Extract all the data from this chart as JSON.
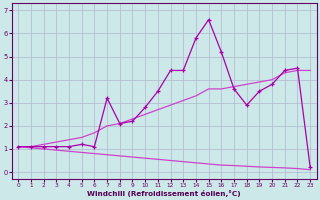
{
  "x": [
    0,
    1,
    2,
    3,
    4,
    5,
    6,
    7,
    8,
    9,
    10,
    11,
    12,
    13,
    14,
    15,
    16,
    17,
    18,
    19,
    20,
    21,
    22,
    23
  ],
  "y_main": [
    1.1,
    1.1,
    1.1,
    1.1,
    1.1,
    1.2,
    1.1,
    3.2,
    2.1,
    2.2,
    2.8,
    3.5,
    4.4,
    4.4,
    5.8,
    6.6,
    5.2,
    3.6,
    2.9,
    3.5,
    3.8,
    4.4,
    4.5,
    0.2
  ],
  "y_upper": [
    1.1,
    1.1,
    1.2,
    1.3,
    1.4,
    1.5,
    1.7,
    2.0,
    2.1,
    2.3,
    2.5,
    2.7,
    2.9,
    3.1,
    3.3,
    3.6,
    3.6,
    3.7,
    3.8,
    3.9,
    4.0,
    4.3,
    4.4,
    4.4
  ],
  "y_lower": [
    1.1,
    1.05,
    1.0,
    0.95,
    0.9,
    0.85,
    0.8,
    0.75,
    0.7,
    0.65,
    0.6,
    0.55,
    0.5,
    0.45,
    0.4,
    0.35,
    0.3,
    0.28,
    0.25,
    0.22,
    0.2,
    0.18,
    0.15,
    0.1
  ],
  "color_main": "#aa00aa",
  "color_upper": "#cc44cc",
  "color_lower": "#cc44cc",
  "xlabel": "Windchill (Refroidissement éolien,°C)",
  "xlim": [
    -0.5,
    23.5
  ],
  "ylim": [
    -0.3,
    7.3
  ],
  "yticks": [
    0,
    1,
    2,
    3,
    4,
    5,
    6,
    7
  ],
  "xticks": [
    0,
    1,
    2,
    3,
    4,
    5,
    6,
    7,
    8,
    9,
    10,
    11,
    12,
    13,
    14,
    15,
    16,
    17,
    18,
    19,
    20,
    21,
    22,
    23
  ],
  "bg_color": "#cce8e8",
  "grid_color": "#b0b8cc"
}
